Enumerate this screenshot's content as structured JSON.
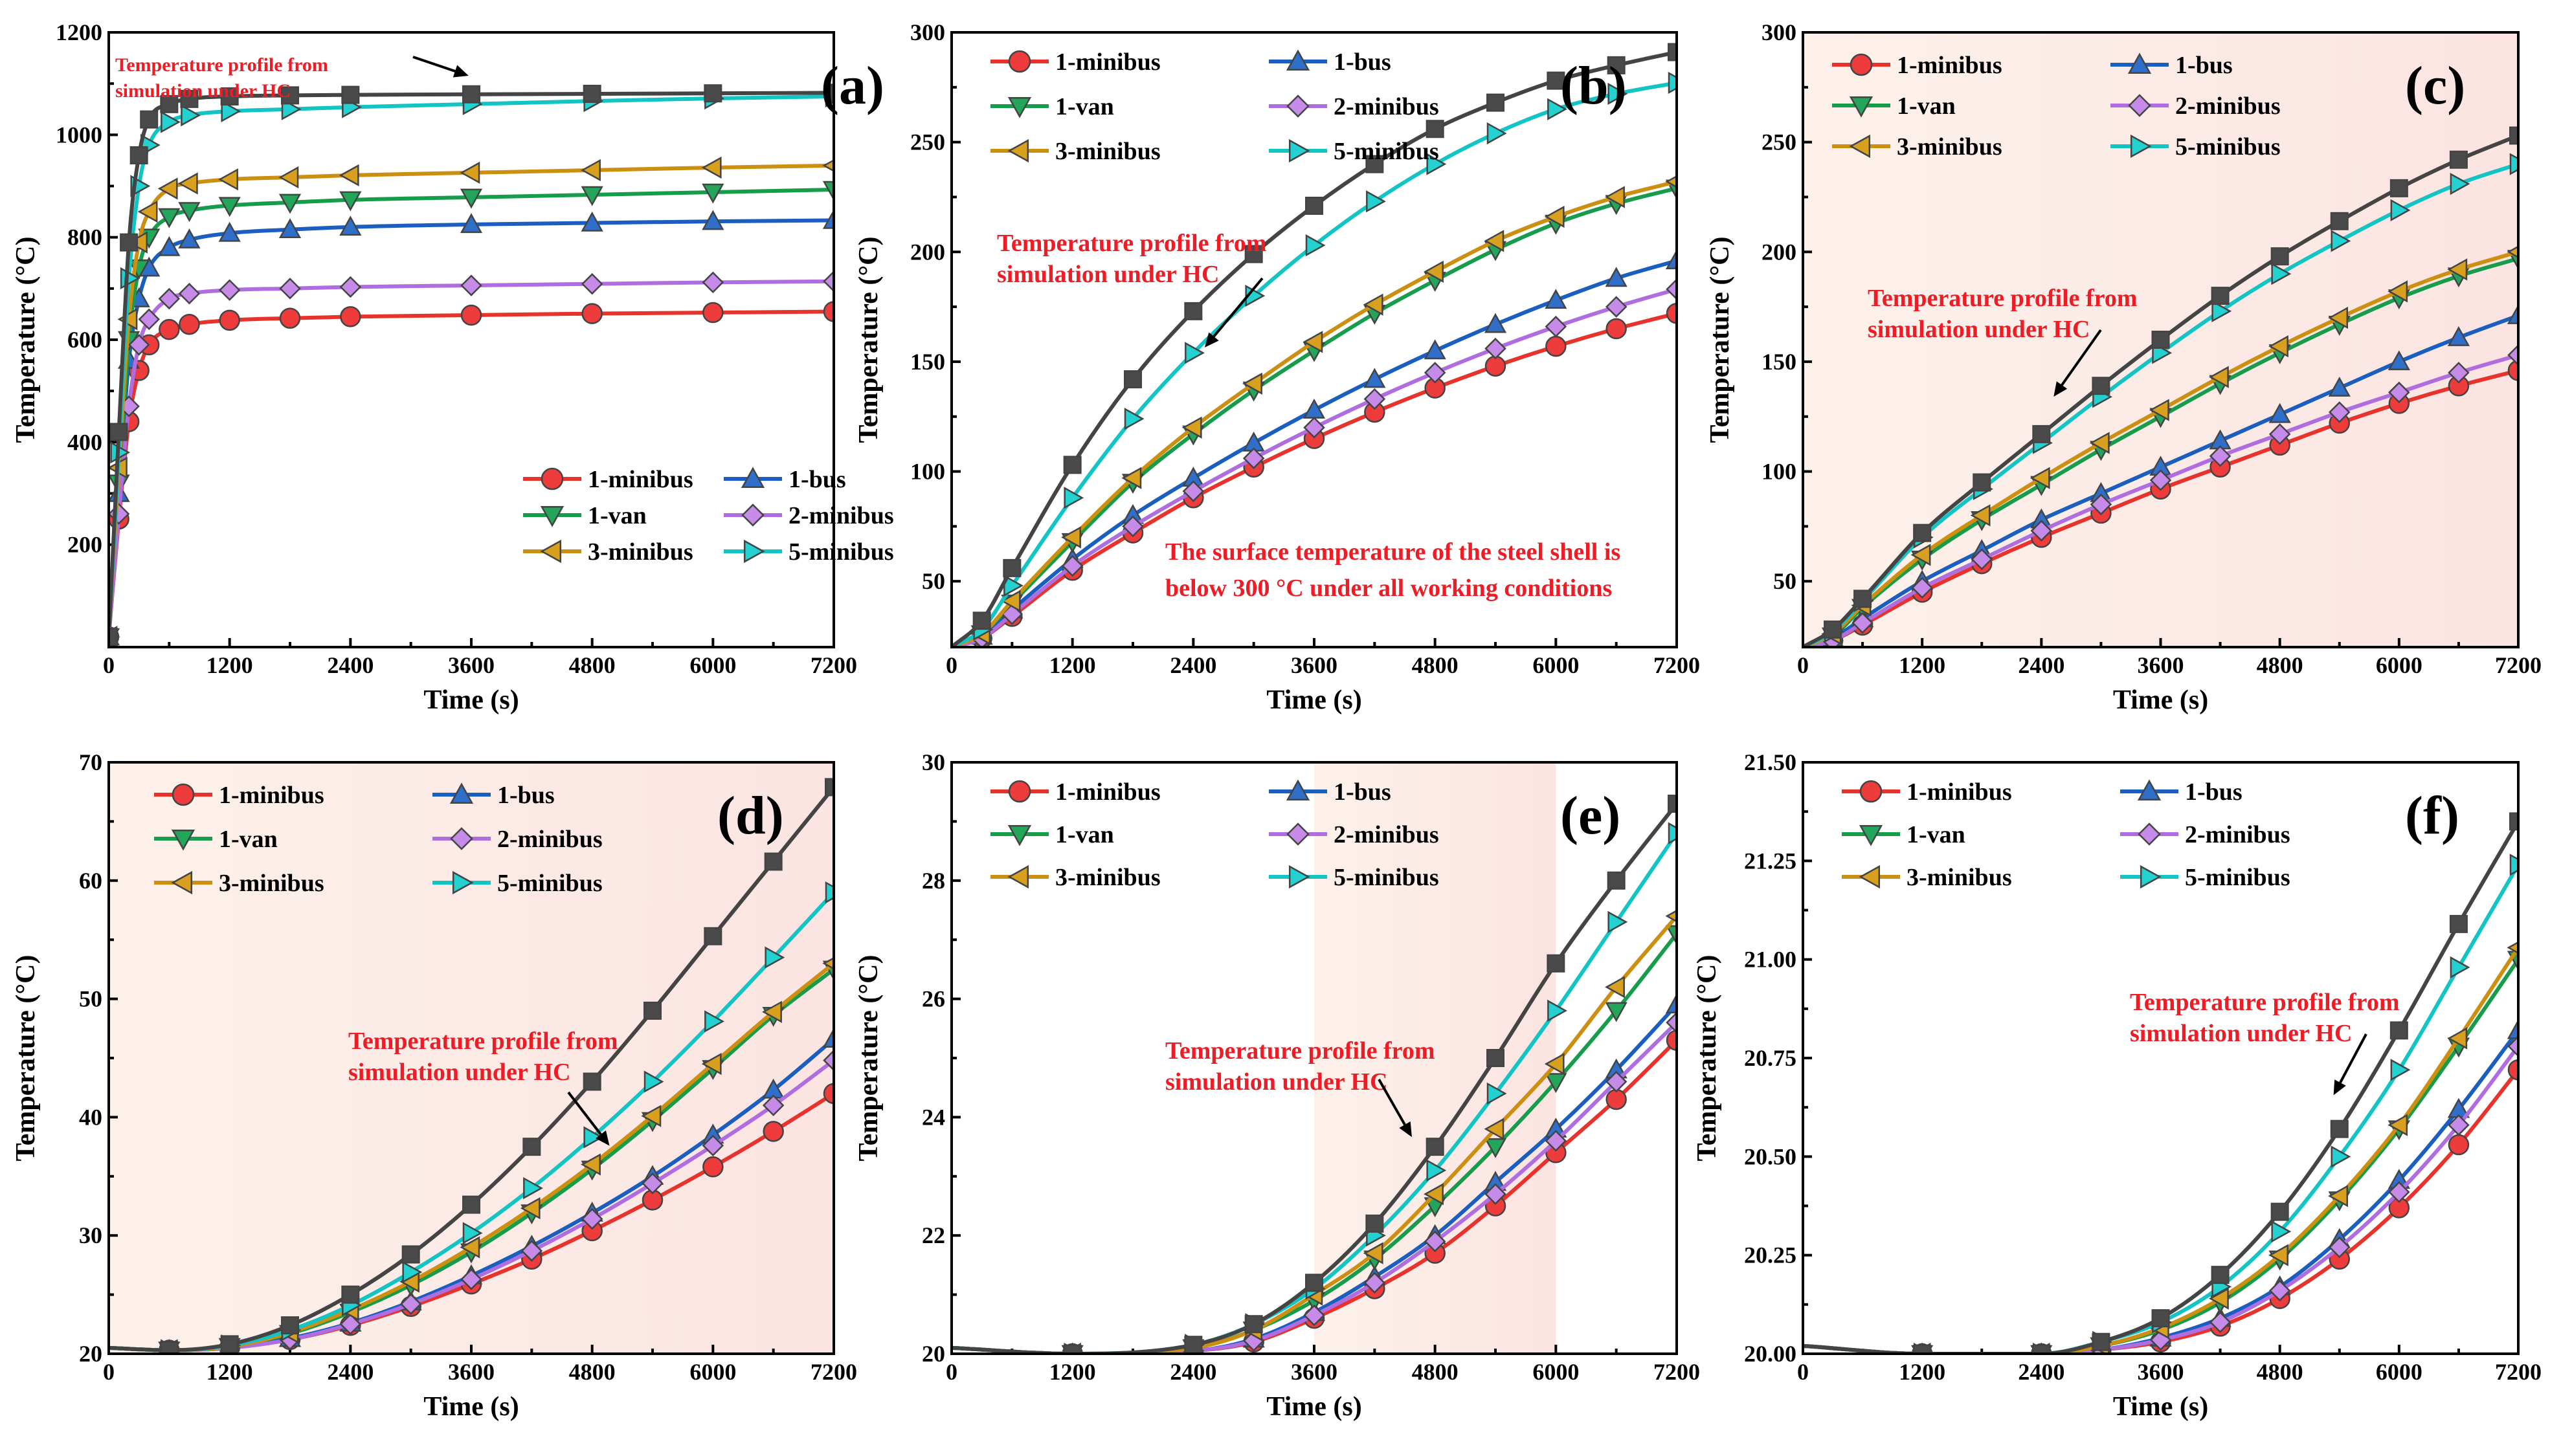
{
  "chart_data": [
    {
      "type": "line",
      "panel": "(a)",
      "title": "",
      "xlabel": "Time (s)",
      "ylabel": "Temperature (°C)",
      "xlim": [
        0,
        7200
      ],
      "ylim": [
        0,
        1200
      ],
      "xticks": [
        0,
        1200,
        2400,
        3600,
        4800,
        6000,
        7200
      ],
      "yticks": [
        200,
        400,
        600,
        800,
        1000,
        1200
      ],
      "ytick_labels": [
        "200",
        "400",
        "600",
        "800",
        "1000",
        "1200"
      ],
      "legend_position": "lower-right",
      "annotation": "Temperature profile from simulation under HC",
      "x": [
        0,
        100,
        200,
        300,
        400,
        600,
        800,
        1200,
        1800,
        2400,
        3600,
        4800,
        6000,
        7200
      ],
      "series": [
        {
          "name": "1-minibus",
          "values": [
            20,
            250,
            440,
            540,
            590,
            620,
            630,
            638,
            642,
            645,
            648,
            651,
            653,
            655
          ]
        },
        {
          "name": "1-bus",
          "values": [
            20,
            300,
            560,
            680,
            740,
            780,
            795,
            808,
            815,
            820,
            825,
            828,
            831,
            833
          ]
        },
        {
          "name": "1-van",
          "values": [
            20,
            320,
            600,
            740,
            800,
            840,
            852,
            862,
            868,
            873,
            878,
            883,
            888,
            893
          ]
        },
        {
          "name": "2-minibus",
          "values": [
            20,
            260,
            470,
            590,
            640,
            680,
            690,
            697,
            700,
            703,
            706,
            709,
            712,
            714
          ]
        },
        {
          "name": "3-minibus",
          "values": [
            20,
            350,
            640,
            790,
            850,
            895,
            905,
            913,
            917,
            921,
            926,
            931,
            936,
            940
          ]
        },
        {
          "name": "5-minibus",
          "values": [
            20,
            380,
            720,
            900,
            980,
            1025,
            1038,
            1046,
            1050,
            1054,
            1060,
            1066,
            1071,
            1075
          ]
        },
        {
          "name": "HC",
          "values": [
            20,
            420,
            790,
            960,
            1030,
            1060,
            1070,
            1075,
            1077,
            1078,
            1079,
            1080,
            1081,
            1082
          ]
        }
      ]
    },
    {
      "type": "line",
      "panel": "(b)",
      "title": "",
      "xlabel": "Time (s)",
      "ylabel": "Temperature (°C)",
      "xlim": [
        0,
        7200
      ],
      "ylim": [
        20,
        300
      ],
      "xticks": [
        0,
        1200,
        2400,
        3600,
        4800,
        6000,
        7200
      ],
      "yticks": [
        50,
        100,
        150,
        200,
        250,
        300
      ],
      "ytick_labels": [
        "50",
        "100",
        "150",
        "200",
        "250",
        "300"
      ],
      "legend_position": "top-left",
      "annotation": "Temperature profile from simulation under HC",
      "annotation2": "The surface temperature of the steel shell is below 300 °C under all working conditions",
      "x": [
        0,
        300,
        600,
        1200,
        1800,
        2400,
        3000,
        3600,
        4200,
        4800,
        5400,
        6000,
        6600,
        7200
      ],
      "series": [
        {
          "name": "1-minibus",
          "values": [
            20,
            24,
            34,
            55,
            72,
            88,
            102,
            115,
            127,
            138,
            148,
            157,
            165,
            172
          ]
        },
        {
          "name": "1-bus",
          "values": [
            20,
            25,
            37,
            60,
            80,
            97,
            113,
            128,
            142,
            155,
            167,
            178,
            188,
            196
          ]
        },
        {
          "name": "1-van",
          "values": [
            20,
            26,
            40,
            68,
            95,
            117,
            137,
            155,
            172,
            187,
            201,
            213,
            222,
            229
          ]
        },
        {
          "name": "2-minibus",
          "values": [
            20,
            24,
            35,
            57,
            75,
            91,
            106,
            120,
            133,
            145,
            156,
            166,
            175,
            183
          ]
        },
        {
          "name": "3-minibus",
          "values": [
            20,
            26,
            41,
            70,
            97,
            120,
            140,
            159,
            176,
            191,
            205,
            216,
            225,
            232
          ]
        },
        {
          "name": "5-minibus",
          "values": [
            20,
            28,
            48,
            88,
            124,
            154,
            180,
            203,
            223,
            240,
            254,
            265,
            272,
            277
          ]
        },
        {
          "name": "HC",
          "values": [
            20,
            32,
            56,
            103,
            142,
            173,
            199,
            221,
            240,
            256,
            268,
            278,
            285,
            291
          ]
        }
      ]
    },
    {
      "type": "line",
      "panel": "(c)",
      "title": "",
      "xlabel": "Time (s)",
      "ylabel": "Temperature (°C)",
      "xlim": [
        0,
        7200
      ],
      "ylim": [
        20,
        300
      ],
      "xticks": [
        0,
        1200,
        2400,
        3600,
        4800,
        6000,
        7200
      ],
      "yticks": [
        50,
        100,
        150,
        200,
        250,
        300
      ],
      "ytick_labels": [
        "50",
        "100",
        "150",
        "200",
        "250",
        "300"
      ],
      "legend_position": "top-left",
      "annotation": "Temperature profile from simulation under HC",
      "x": [
        0,
        300,
        600,
        1200,
        1800,
        2400,
        3000,
        3600,
        4200,
        4800,
        5400,
        6000,
        6600,
        7200
      ],
      "series": [
        {
          "name": "1-minibus",
          "values": [
            20,
            23,
            30,
            45,
            58,
            70,
            81,
            92,
            102,
            112,
            122,
            131,
            139,
            146
          ]
        },
        {
          "name": "1-bus",
          "values": [
            20,
            24,
            33,
            50,
            64,
            78,
            90,
            102,
            114,
            126,
            138,
            150,
            161,
            171
          ]
        },
        {
          "name": "1-van",
          "values": [
            20,
            25,
            38,
            60,
            78,
            94,
            110,
            125,
            140,
            154,
            167,
            179,
            189,
            197
          ]
        },
        {
          "name": "2-minibus",
          "values": [
            20,
            23,
            31,
            47,
            60,
            73,
            85,
            96,
            107,
            117,
            127,
            136,
            145,
            153
          ]
        },
        {
          "name": "3-minibus",
          "values": [
            20,
            26,
            39,
            62,
            80,
            97,
            113,
            128,
            143,
            157,
            170,
            182,
            192,
            200
          ]
        },
        {
          "name": "5-minibus",
          "values": [
            20,
            27,
            41,
            70,
            92,
            113,
            134,
            154,
            173,
            190,
            205,
            219,
            231,
            240
          ]
        },
        {
          "name": "HC",
          "values": [
            20,
            28,
            42,
            72,
            95,
            117,
            139,
            160,
            180,
            198,
            214,
            229,
            242,
            253
          ]
        }
      ]
    },
    {
      "type": "line",
      "panel": "(d)",
      "title": "",
      "xlabel": "Time (s)",
      "ylabel": "Temperature (°C)",
      "xlim": [
        0,
        7200
      ],
      "ylim": [
        20,
        70
      ],
      "xticks": [
        0,
        1200,
        2400,
        3600,
        4800,
        6000,
        7200
      ],
      "yticks": [
        20,
        30,
        40,
        50,
        60,
        70
      ],
      "ytick_labels": [
        "20",
        "30",
        "40",
        "50",
        "60",
        "70"
      ],
      "legend_position": "top-left",
      "annotation": "Temperature profile from simulation under HC",
      "x": [
        0,
        600,
        1200,
        1800,
        2400,
        3000,
        3600,
        4200,
        4800,
        5400,
        6000,
        6600,
        7200
      ],
      "series": [
        {
          "name": "1-minibus",
          "values": [
            20.5,
            20.3,
            20.5,
            21.2,
            22.4,
            24.0,
            25.9,
            28.0,
            30.4,
            33.0,
            35.8,
            38.8,
            42.0
          ]
        },
        {
          "name": "1-bus",
          "values": [
            20.5,
            20.3,
            20.5,
            21.3,
            22.6,
            24.4,
            26.6,
            29.1,
            31.9,
            35.0,
            38.5,
            42.3,
            46.6
          ]
        },
        {
          "name": "1-van",
          "values": [
            20.5,
            20.3,
            20.6,
            21.7,
            23.5,
            25.8,
            28.6,
            31.9,
            35.6,
            39.7,
            44.1,
            48.6,
            52.5
          ]
        },
        {
          "name": "2-minibus",
          "values": [
            20.5,
            20.3,
            20.5,
            21.2,
            22.5,
            24.2,
            26.3,
            28.7,
            31.4,
            34.4,
            37.6,
            41.0,
            44.8
          ]
        },
        {
          "name": "3-minibus",
          "values": [
            20.5,
            20.3,
            20.6,
            21.8,
            23.7,
            26.1,
            29.0,
            32.3,
            36.0,
            40.1,
            44.5,
            48.9,
            53.0
          ]
        },
        {
          "name": "5-minibus",
          "values": [
            20.5,
            20.3,
            20.7,
            22.0,
            24.1,
            26.9,
            30.2,
            34.0,
            38.3,
            43.0,
            48.1,
            53.5,
            59.0
          ]
        },
        {
          "name": "HC",
          "values": [
            20.5,
            20.3,
            20.8,
            22.4,
            25.0,
            28.4,
            32.6,
            37.5,
            43.0,
            49.0,
            55.3,
            61.6,
            67.9
          ]
        }
      ]
    },
    {
      "type": "line",
      "panel": "(e)",
      "title": "",
      "xlabel": "Time (s)",
      "ylabel": "Temperature (°C)",
      "xlim": [
        0,
        7200
      ],
      "ylim": [
        20,
        30
      ],
      "xticks": [
        0,
        1200,
        2400,
        3600,
        4800,
        6000,
        7200
      ],
      "yticks": [
        20,
        22,
        24,
        26,
        28,
        30
      ],
      "ytick_labels": [
        "20",
        "22",
        "24",
        "26",
        "28",
        "30"
      ],
      "legend_position": "top-left",
      "annotation": "Temperature profile from simulation under HC",
      "x": [
        0,
        1200,
        2400,
        3000,
        3600,
        4200,
        4800,
        5400,
        6000,
        6600,
        7200
      ],
      "series": [
        {
          "name": "1-minibus",
          "values": [
            20.1,
            20.0,
            20.05,
            20.2,
            20.6,
            21.1,
            21.7,
            22.5,
            23.4,
            24.3,
            25.3
          ]
        },
        {
          "name": "1-bus",
          "values": [
            20.1,
            20.0,
            20.05,
            20.25,
            20.7,
            21.3,
            22.0,
            22.9,
            23.8,
            24.8,
            25.9
          ]
        },
        {
          "name": "1-van",
          "values": [
            20.1,
            20.0,
            20.1,
            20.4,
            20.9,
            21.6,
            22.5,
            23.5,
            24.6,
            25.8,
            27.1
          ]
        },
        {
          "name": "2-minibus",
          "values": [
            20.1,
            20.0,
            20.05,
            20.22,
            20.65,
            21.2,
            21.9,
            22.7,
            23.6,
            24.6,
            25.6
          ]
        },
        {
          "name": "3-minibus",
          "values": [
            20.1,
            20.0,
            20.1,
            20.4,
            21.0,
            21.7,
            22.7,
            23.8,
            24.9,
            26.2,
            27.4
          ]
        },
        {
          "name": "5-minibus",
          "values": [
            20.1,
            20.0,
            20.15,
            20.5,
            21.1,
            22.0,
            23.1,
            24.4,
            25.8,
            27.3,
            28.8
          ]
        },
        {
          "name": "HC",
          "values": [
            20.1,
            20.0,
            20.15,
            20.5,
            21.2,
            22.2,
            23.5,
            25.0,
            26.6,
            28.0,
            29.3
          ]
        }
      ]
    },
    {
      "type": "line",
      "panel": "(f)",
      "title": "",
      "xlabel": "Time (s)",
      "ylabel": "Temperature (°C)",
      "xlim": [
        0,
        7200
      ],
      "ylim": [
        20.0,
        21.5
      ],
      "xticks": [
        0,
        1200,
        2400,
        3600,
        4800,
        6000,
        7200
      ],
      "yticks": [
        20.0,
        20.25,
        20.5,
        20.75,
        21.0,
        21.25,
        21.5
      ],
      "ytick_labels": [
        "20.00",
        "20.25",
        "20.50",
        "20.75",
        "21.00",
        "21.25",
        "21.50"
      ],
      "legend_position": "top-left",
      "annotation": "Temperature profile from simulation under HC",
      "x": [
        0,
        1200,
        2400,
        3000,
        3600,
        4200,
        4800,
        5400,
        6000,
        6600,
        7200
      ],
      "series": [
        {
          "name": "1-minibus",
          "values": [
            20.02,
            20.0,
            20.0,
            20.01,
            20.03,
            20.07,
            20.14,
            20.24,
            20.37,
            20.53,
            20.72
          ]
        },
        {
          "name": "1-bus",
          "values": [
            20.02,
            20.0,
            20.0,
            20.01,
            20.04,
            20.09,
            20.17,
            20.29,
            20.44,
            20.62,
            20.82
          ]
        },
        {
          "name": "1-van",
          "values": [
            20.02,
            20.0,
            20.0,
            20.02,
            20.06,
            20.13,
            20.24,
            20.39,
            20.57,
            20.78,
            21.0
          ]
        },
        {
          "name": "2-minibus",
          "values": [
            20.02,
            20.0,
            20.0,
            20.01,
            20.035,
            20.08,
            20.16,
            20.27,
            20.41,
            20.58,
            20.78
          ]
        },
        {
          "name": "3-minibus",
          "values": [
            20.02,
            20.0,
            20.0,
            20.02,
            20.065,
            20.14,
            20.25,
            20.4,
            20.58,
            20.8,
            21.03
          ]
        },
        {
          "name": "5-minibus",
          "values": [
            20.02,
            20.0,
            20.0,
            20.03,
            20.08,
            20.17,
            20.31,
            20.5,
            20.72,
            20.98,
            21.24
          ]
        },
        {
          "name": "HC",
          "values": [
            20.02,
            20.0,
            20.0,
            20.03,
            20.09,
            20.2,
            20.36,
            20.57,
            20.82,
            21.09,
            21.35
          ]
        }
      ]
    }
  ],
  "series_styles": [
    {
      "name": "1-minibus",
      "label": "1-minibus",
      "color": "#ee3b3b",
      "stroke": "#e8322c",
      "marker": "circle"
    },
    {
      "name": "1-bus",
      "label": "1-bus",
      "color": "#2f6fc9",
      "stroke": "#1a5fbf",
      "marker": "triangle-up"
    },
    {
      "name": "1-van",
      "label": "1-van",
      "color": "#23a65a",
      "stroke": "#169c4a",
      "marker": "triangle-down"
    },
    {
      "name": "2-minibus",
      "label": "2-minibus",
      "color": "#c68be8",
      "stroke": "#b06de0",
      "marker": "diamond"
    },
    {
      "name": "3-minibus",
      "label": "3-minibus",
      "color": "#d9a01f",
      "stroke": "#cc8f10",
      "marker": "triangle-left"
    },
    {
      "name": "5-minibus",
      "label": "5-minibus",
      "color": "#24d1d1",
      "stroke": "#12c4c4",
      "marker": "triangle-right"
    },
    {
      "name": "HC",
      "label": "",
      "color": "#4a4a4a",
      "stroke": "#444444",
      "marker": "square"
    }
  ],
  "colors": {
    "annotation": "#ee1c25",
    "shade": "#fbe4e2",
    "axis": "#000000"
  }
}
